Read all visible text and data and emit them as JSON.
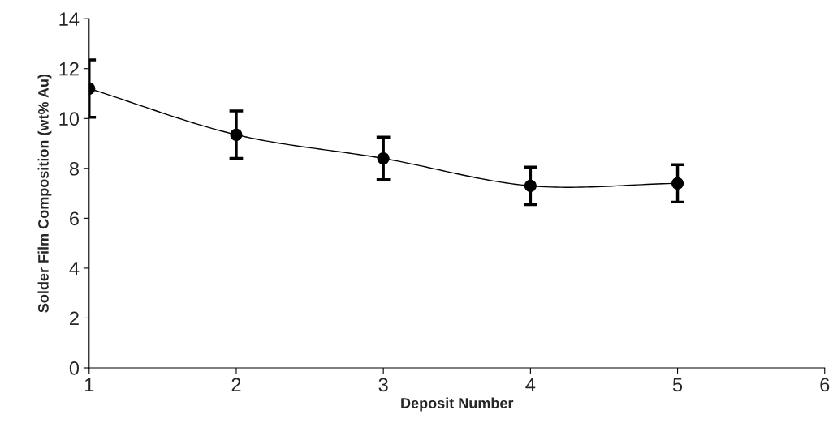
{
  "chart_data": {
    "type": "line",
    "xlabel": "Deposit Number",
    "ylabel": "Solder Film Composition (wt% Au)",
    "x": [
      1,
      2,
      3,
      4,
      5
    ],
    "series": [
      {
        "color": "#000000",
        "values": [
          11.2,
          9.35,
          8.4,
          7.3,
          7.4
        ],
        "errors": [
          1.15,
          0.95,
          0.85,
          0.75,
          0.75
        ]
      }
    ],
    "xlim": [
      1,
      6
    ],
    "xticks": [
      1,
      2,
      3,
      4,
      5,
      6
    ],
    "ylim": [
      0,
      14
    ],
    "yticks": [
      0,
      2,
      4,
      6,
      8,
      10,
      12,
      14
    ],
    "grid": false,
    "legend": false,
    "marker": "circle",
    "line_style": "solid"
  }
}
